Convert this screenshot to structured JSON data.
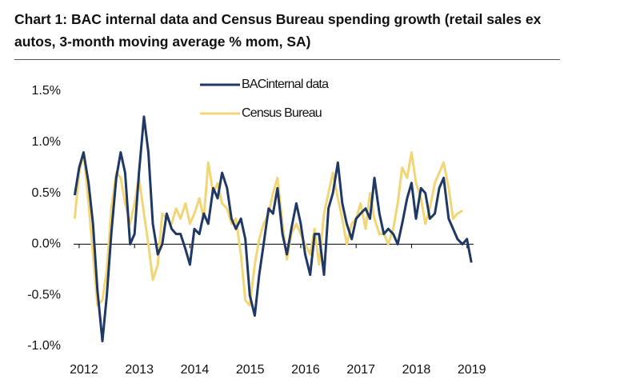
{
  "chart_data": {
    "type": "line",
    "title": "Chart 1: BAC internal data and Census Bureau spending growth (retail sales ex autos, 3-month moving average % mom, SA)",
    "x": [
      2011.92,
      2012.0,
      2012.08,
      2012.17,
      2012.25,
      2012.33,
      2012.42,
      2012.5,
      2012.58,
      2012.67,
      2012.75,
      2012.83,
      2012.92,
      2013.0,
      2013.08,
      2013.17,
      2013.25,
      2013.33,
      2013.42,
      2013.5,
      2013.58,
      2013.67,
      2013.75,
      2013.83,
      2013.92,
      2014.0,
      2014.08,
      2014.17,
      2014.25,
      2014.33,
      2014.42,
      2014.5,
      2014.58,
      2014.67,
      2014.75,
      2014.83,
      2014.92,
      2015.0,
      2015.08,
      2015.17,
      2015.25,
      2015.33,
      2015.42,
      2015.5,
      2015.58,
      2015.67,
      2015.75,
      2015.83,
      2015.92,
      2016.0,
      2016.08,
      2016.17,
      2016.25,
      2016.33,
      2016.42,
      2016.5,
      2016.58,
      2016.67,
      2016.75,
      2016.83,
      2016.92,
      2017.0,
      2017.08,
      2017.17,
      2017.25,
      2017.33,
      2017.42,
      2017.5,
      2017.58,
      2017.67,
      2017.75,
      2017.83,
      2017.92,
      2018.0,
      2018.08,
      2018.17,
      2018.25,
      2018.33,
      2018.42,
      2018.5,
      2018.58,
      2018.67,
      2018.75,
      2018.83,
      2018.92,
      2019.0,
      2019.08
    ],
    "series": [
      {
        "name": "BACinternal data",
        "color": "#1f3864",
        "values": [
          0.48,
          0.75,
          0.9,
          0.6,
          0.2,
          -0.45,
          -0.95,
          -0.5,
          0.1,
          0.65,
          0.9,
          0.7,
          0.0,
          0.1,
          0.7,
          1.25,
          0.9,
          0.2,
          -0.1,
          0.0,
          0.3,
          0.15,
          0.1,
          0.1,
          -0.05,
          -0.2,
          0.15,
          0.1,
          0.3,
          0.2,
          0.55,
          0.45,
          0.7,
          0.55,
          0.25,
          0.15,
          0.25,
          0.05,
          -0.5,
          -0.7,
          -0.3,
          0.0,
          0.35,
          0.3,
          0.55,
          0.1,
          -0.1,
          0.15,
          0.4,
          0.2,
          -0.1,
          -0.3,
          0.1,
          0.1,
          -0.3,
          0.35,
          0.5,
          0.8,
          0.4,
          0.2,
          0.05,
          0.25,
          0.3,
          0.35,
          0.25,
          0.65,
          0.3,
          0.1,
          0.15,
          0.1,
          0.0,
          0.2,
          0.45,
          0.6,
          0.25,
          0.55,
          0.5,
          0.25,
          0.3,
          0.55,
          0.65,
          0.25,
          0.15,
          0.05,
          0.0,
          0.05,
          -0.18
        ]
      },
      {
        "name": "Census Bureau",
        "color": "#f2d675",
        "values": [
          0.25,
          0.7,
          0.9,
          0.4,
          -0.1,
          -0.6,
          -0.55,
          -0.25,
          0.35,
          0.7,
          0.65,
          0.4,
          0.2,
          0.4,
          0.65,
          0.3,
          0.0,
          -0.35,
          -0.2,
          0.3,
          0.25,
          0.2,
          0.35,
          0.25,
          0.4,
          0.2,
          0.3,
          0.45,
          0.25,
          0.8,
          0.5,
          0.6,
          0.4,
          0.35,
          0.2,
          0.25,
          -0.1,
          -0.55,
          -0.6,
          -0.2,
          0.05,
          0.2,
          0.3,
          0.5,
          0.65,
          0.2,
          -0.15,
          0.1,
          0.2,
          0.1,
          0.0,
          -0.1,
          0.15,
          -0.2,
          0.3,
          0.5,
          0.7,
          0.45,
          0.25,
          0.0,
          0.2,
          0.25,
          0.4,
          0.15,
          0.5,
          0.25,
          0.1,
          0.1,
          0.0,
          0.15,
          0.4,
          0.75,
          0.65,
          0.9,
          0.6,
          0.45,
          0.2,
          0.35,
          0.6,
          0.7,
          0.8,
          0.55,
          0.25,
          0.3,
          0.33,
          null,
          null
        ]
      }
    ],
    "xlim": [
      2011.9,
      2019.12
    ],
    "xticks": [
      2012,
      2013,
      2014,
      2015,
      2016,
      2017,
      2018,
      2019
    ],
    "ylim": [
      -1.0,
      1.5
    ],
    "yticks": [
      {
        "value": -1.0,
        "label": "-1.0%"
      },
      {
        "value": -0.5,
        "label": "-0.5%"
      },
      {
        "value": 0.0,
        "label": "0.0%"
      },
      {
        "value": 0.5,
        "label": "0.5%"
      },
      {
        "value": 1.0,
        "label": "1.0%"
      },
      {
        "value": 1.5,
        "label": "1.5%"
      }
    ],
    "grid": false
  }
}
